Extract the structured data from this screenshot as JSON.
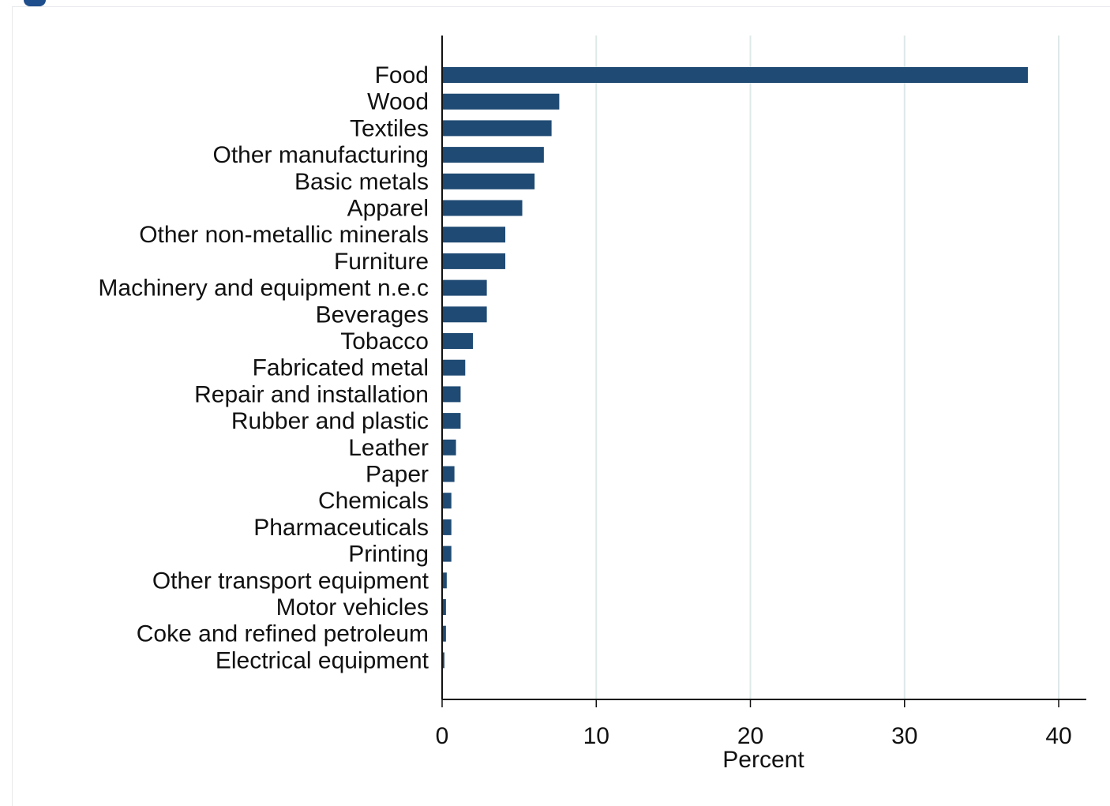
{
  "chart_data": {
    "type": "bar",
    "orientation": "horizontal",
    "categories": [
      "Food",
      "Wood",
      "Textiles",
      "Other manufacturing",
      "Basic metals",
      "Apparel",
      "Other non-metallic minerals",
      "Furniture",
      "Machinery and equipment n.e.c",
      "Beverages",
      "Tobacco",
      "Fabricated metal",
      "Repair and installation",
      "Rubber and plastic",
      "Leather",
      "Paper",
      "Chemicals",
      "Pharmaceuticals",
      "Printing",
      "Other transport equipment",
      "Motor vehicles",
      "Coke and refined petroleum",
      "Electrical equipment"
    ],
    "values": [
      38.0,
      7.6,
      7.1,
      6.6,
      6.0,
      5.2,
      4.1,
      4.1,
      2.9,
      2.9,
      2.0,
      1.5,
      1.2,
      1.2,
      0.9,
      0.8,
      0.6,
      0.6,
      0.6,
      0.3,
      0.25,
      0.25,
      0.15
    ],
    "title": "",
    "xlabel": "Percent",
    "ylabel": "",
    "xlim": [
      0,
      42
    ],
    "xticks": [
      "0",
      "10",
      "20",
      "30",
      "40"
    ],
    "grid": "vertical",
    "legend": "none",
    "bar_color": "#1f4a73",
    "grid_color": "#dde9e8"
  }
}
